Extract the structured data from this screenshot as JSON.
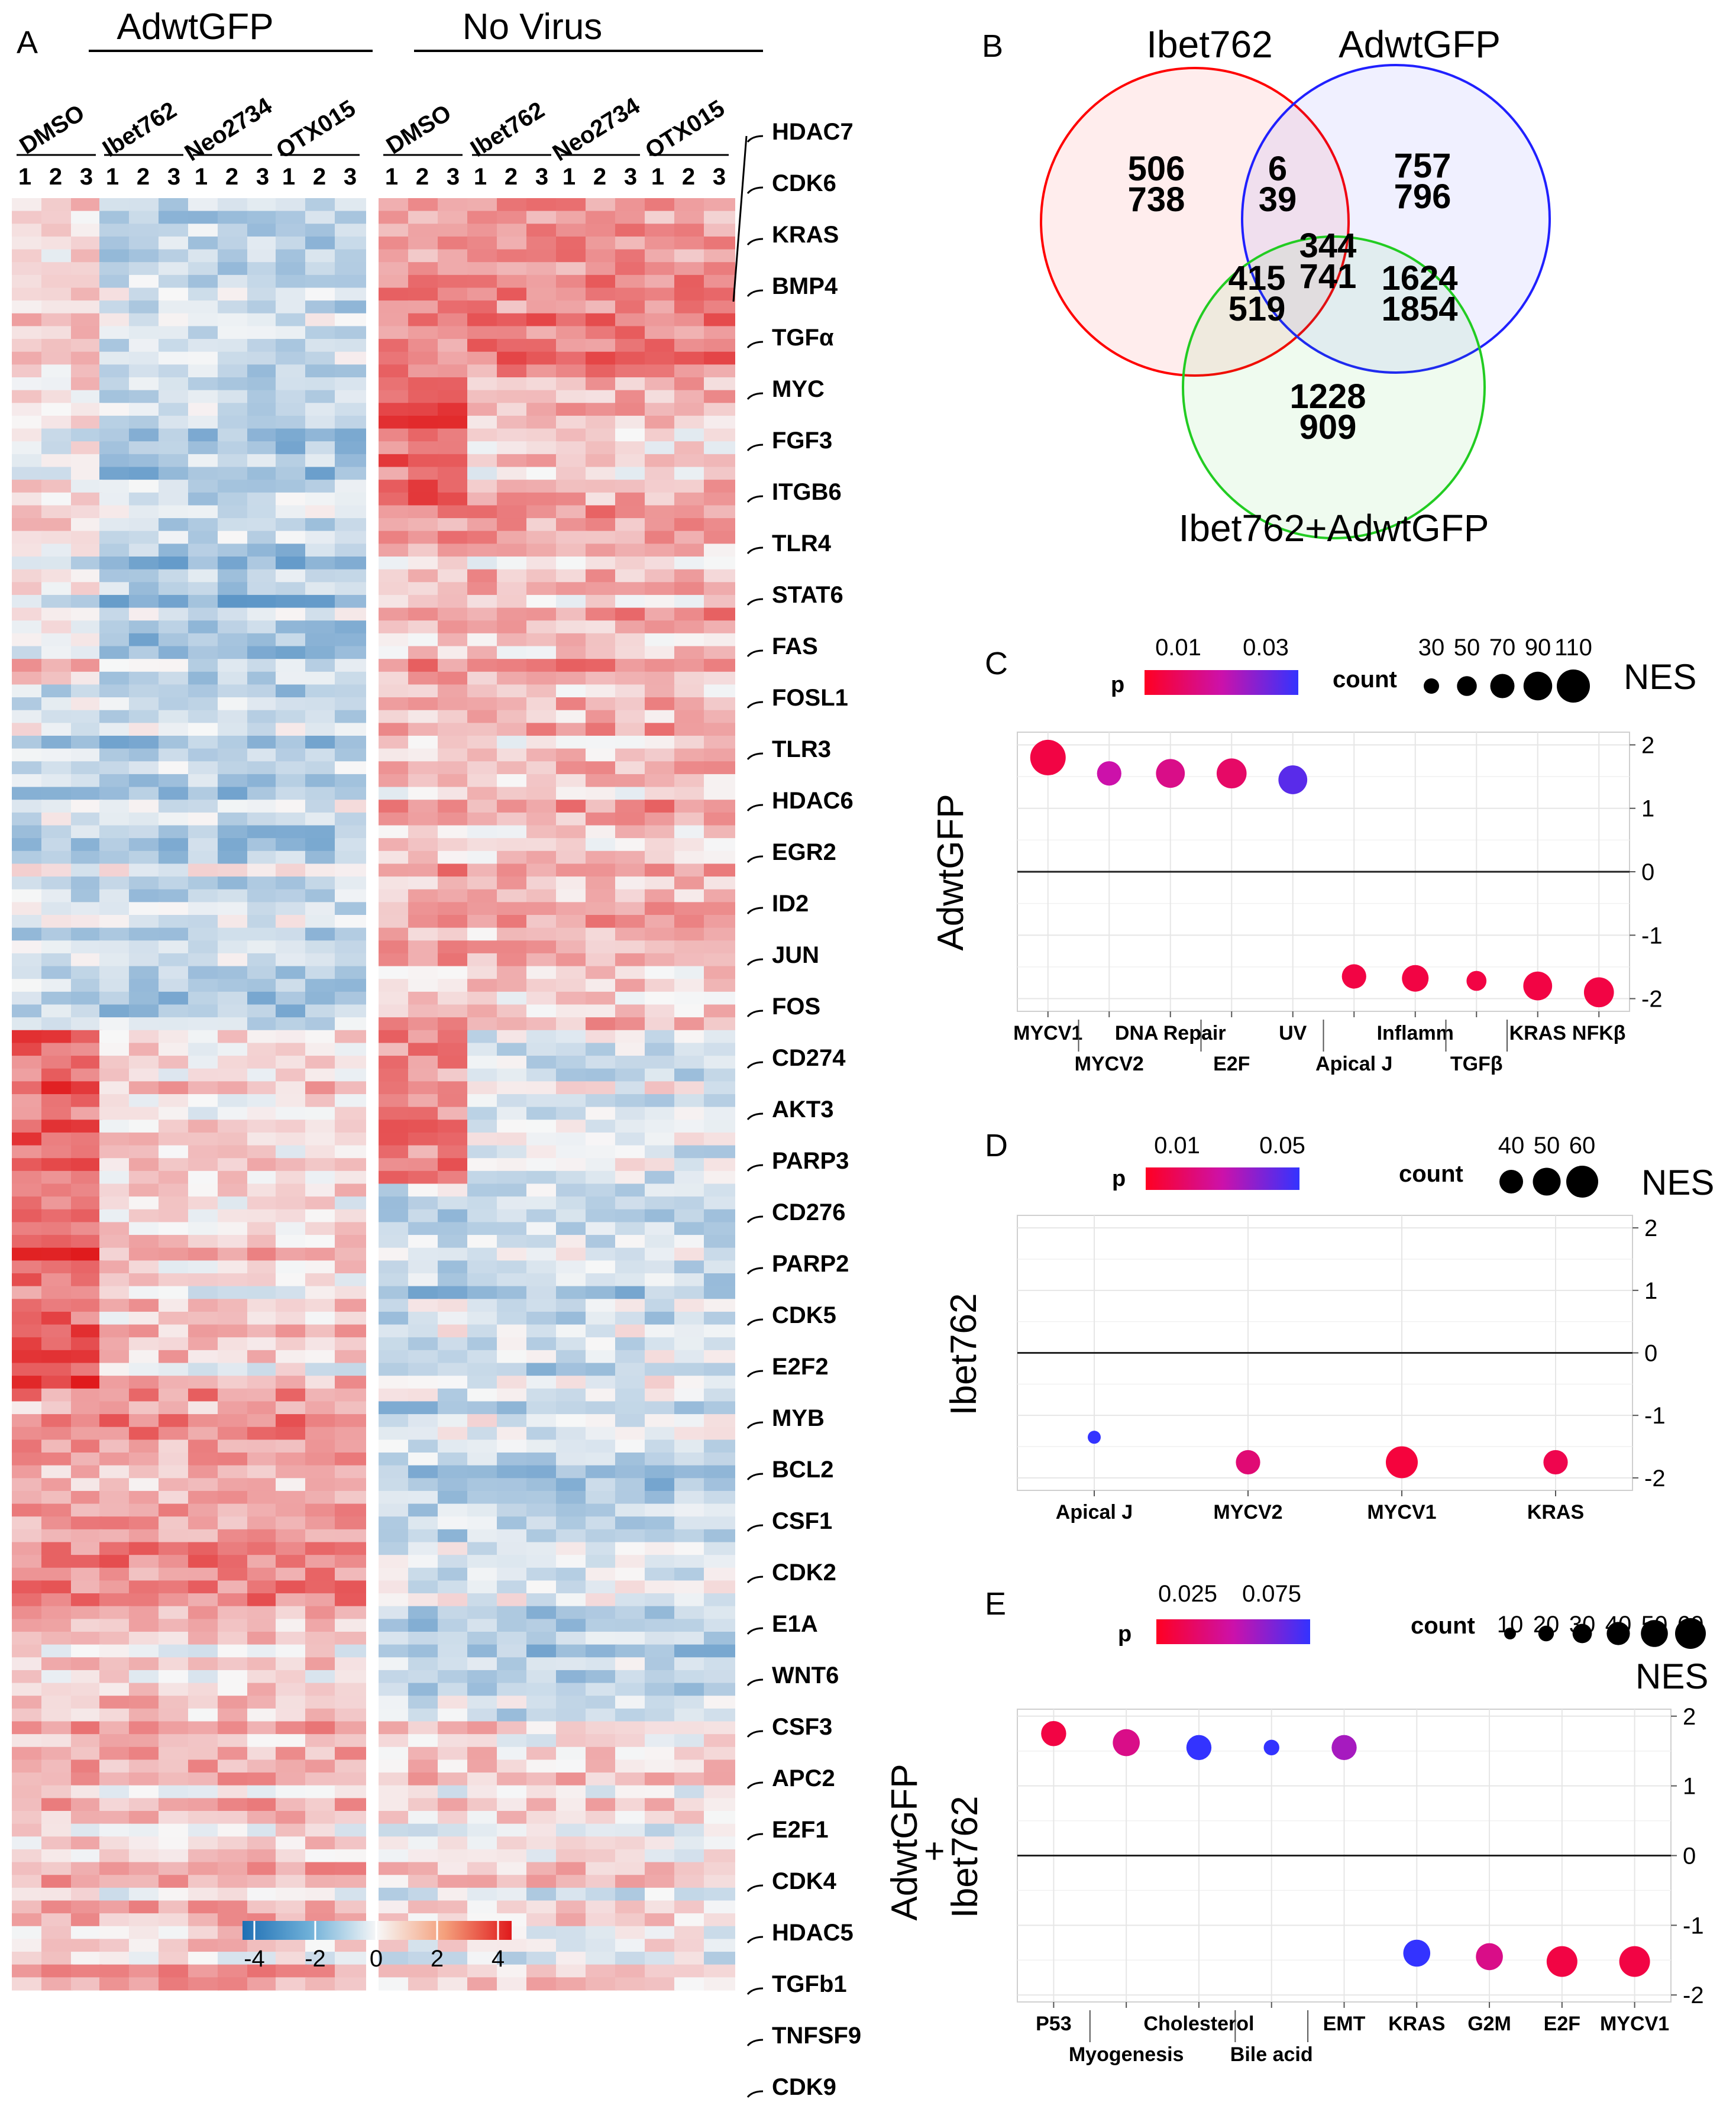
{
  "colors": {
    "blue": "#1f6fb4",
    "white": "#f7fbff",
    "red": "#e41a1c",
    "venn_red": "#ff0000",
    "venn_blue": "#1010ff",
    "venn_green": "#22cc22",
    "p_low": "#ff0000",
    "p_high": "#3030ff"
  },
  "panel_a": {
    "letter": "A",
    "group_labels": [
      "AdwtGFP",
      "No Virus"
    ],
    "treatments": [
      "DMSO",
      "Ibet762",
      "Neo2734",
      "OTX015",
      "DMSO",
      "Ibet762",
      "Neo2734",
      "OTX015"
    ],
    "replicates": [
      "1",
      "2",
      "3"
    ],
    "genes": [
      "HDAC7",
      "CDK6",
      "KRAS",
      "BMP4",
      "TGFα",
      "MYC",
      "FGF3",
      "ITGB6",
      "TLR4",
      "STAT6",
      "FAS",
      "FOSL1",
      "TLR3",
      "HDAC6",
      "EGR2",
      "ID2",
      "JUN",
      "FOS",
      "CD274",
      "AKT3",
      "PARP3",
      "CD276",
      "PARP2",
      "CDK5",
      "E2F2",
      "MYB",
      "BCL2",
      "CSF1",
      "CDK2",
      "E1A",
      "WNT6",
      "CSF3",
      "APC2",
      "E2F1",
      "CDK4",
      "HDAC5",
      "TGFb1",
      "TNFSF9",
      "CDK9"
    ],
    "scale_ticks": [
      "-4",
      "-2",
      "0",
      "2",
      "4"
    ],
    "scale_range": [
      -4,
      4
    ]
  },
  "panel_b": {
    "letter": "B",
    "sets": [
      "Ibet762",
      "AdwtGFP",
      "Ibet762+AdwtGFP"
    ],
    "regions": [
      {
        "region": "Ibet762 only",
        "up": "506",
        "down": "738"
      },
      {
        "region": "Ibet762 & AdwtGFP",
        "up": "6",
        "down": "39"
      },
      {
        "region": "AdwtGFP only",
        "up": "757",
        "down": "796"
      },
      {
        "region": "all three",
        "up": "344",
        "down": "741"
      },
      {
        "region": "Ibet762 & combo",
        "up": "415",
        "down": "519"
      },
      {
        "region": "AdwtGFP & combo",
        "up": "1624",
        "down": "1854"
      },
      {
        "region": "combo only",
        "up": "1228",
        "down": "909"
      }
    ]
  },
  "panel_c": {
    "letter": "C",
    "ylabel": "AdwtGFP",
    "p_title": "p",
    "p_ticks": [
      "0.01",
      "0.03"
    ],
    "count_title": "count",
    "count_ticks": [
      "30",
      "50",
      "70",
      "90",
      "110"
    ],
    "nes_title": "NES",
    "y_ticks": [
      "2",
      "1",
      "0",
      "-1",
      "-2"
    ]
  },
  "panel_d": {
    "letter": "D",
    "ylabel": "Ibet762",
    "p_title": "p",
    "p_ticks": [
      "0.01",
      "0.05"
    ],
    "count_title": "count",
    "count_ticks": [
      "40",
      "50",
      "60"
    ],
    "nes_title": "NES",
    "y_ticks": [
      "2",
      "1",
      "0",
      "-1",
      "-2"
    ]
  },
  "panel_e": {
    "letter": "E",
    "ylabel_top": "AdwtGFP",
    "ylabel_plus": "+",
    "ylabel_bottom": "Ibet762",
    "p_title": "p",
    "p_ticks": [
      "0.025",
      "0.075"
    ],
    "count_title": "count",
    "count_ticks": [
      "10",
      "20",
      "30",
      "40",
      "50",
      "60"
    ],
    "nes_title": "NES",
    "y_ticks": [
      "2",
      "1",
      "0",
      "-1",
      "-2"
    ]
  },
  "chart_data": [
    {
      "panel": "C",
      "type": "scatter",
      "title": "AdwtGFP",
      "ylabel": "NES",
      "ylim": [
        -2.2,
        2.2
      ],
      "categories": [
        "MYCV1",
        "MYCV2",
        "DNA Repair",
        "E2F",
        "UV",
        "Apical J",
        "Inflamm",
        "TGFβ",
        "KRAS",
        "NFKβ"
      ],
      "nes": [
        1.8,
        1.55,
        1.55,
        1.55,
        1.45,
        -1.65,
        -1.68,
        -1.72,
        -1.8,
        -1.9
      ],
      "p": [
        0.005,
        0.02,
        0.015,
        0.01,
        0.035,
        0.005,
        0.005,
        0.005,
        0.005,
        0.005
      ],
      "count": [
        110,
        60,
        80,
        85,
        80,
        60,
        70,
        40,
        80,
        85
      ]
    },
    {
      "panel": "D",
      "type": "scatter",
      "title": "Ibet762",
      "ylabel": "NES",
      "ylim": [
        -2.2,
        2.2
      ],
      "categories": [
        "Apical J",
        "MYCV2",
        "MYCV1",
        "KRAS"
      ],
      "nes": [
        -1.35,
        -1.75,
        -1.75,
        -1.75
      ],
      "p": [
        0.05,
        0.015,
        0.005,
        0.008
      ],
      "count": [
        40,
        55,
        65,
        55
      ]
    },
    {
      "panel": "E",
      "type": "scatter",
      "title": "AdwtGFP + Ibet762",
      "ylabel": "NES",
      "ylim": [
        -2.1,
        2.1
      ],
      "categories": [
        "P53",
        "Myogenesis",
        "Cholesterol",
        "Bile acid",
        "EMT",
        "KRAS",
        "G2M",
        "E2F",
        "MYCV1"
      ],
      "nes": [
        1.75,
        1.62,
        1.55,
        1.55,
        1.55,
        -1.4,
        -1.45,
        -1.52,
        -1.52
      ],
      "p": [
        0.01,
        0.03,
        0.08,
        0.08,
        0.05,
        0.08,
        0.03,
        0.01,
        0.01
      ],
      "count": [
        45,
        50,
        45,
        20,
        45,
        50,
        50,
        60,
        60
      ]
    }
  ]
}
